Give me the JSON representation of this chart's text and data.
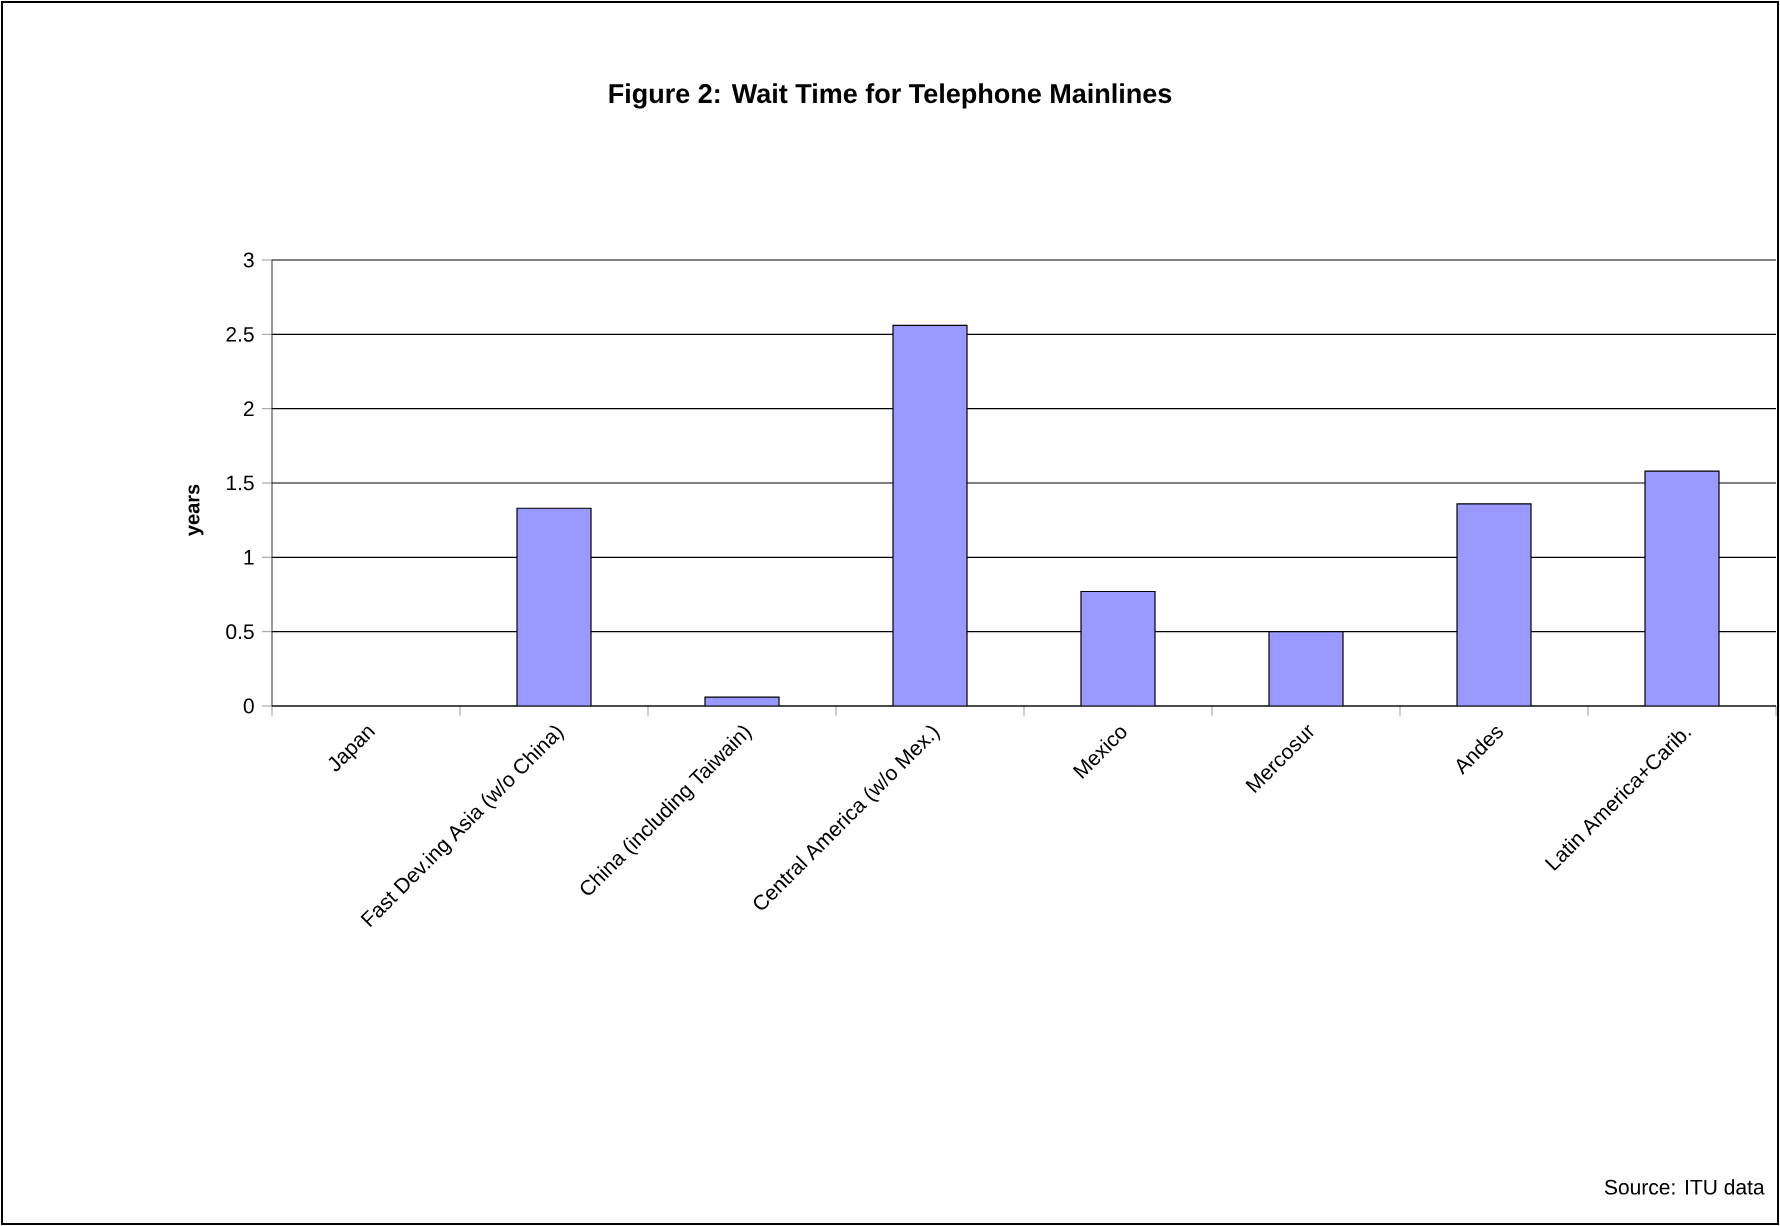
{
  "chart_data": {
    "type": "bar",
    "title": "Figure 2: Wait Time for Telephone Mainlines",
    "ylabel": "years",
    "categories": [
      "Japan",
      "Fast Dev.ing Asia (w/o China)",
      "China (including Taiwain)",
      "Central America (w/o Mex.)",
      "Mexico",
      "Mercosur",
      "Andes",
      "Latin America+Carib."
    ],
    "values": [
      null,
      1.33,
      0.06,
      2.56,
      0.77,
      0.5,
      1.36,
      1.58
    ],
    "color": "#9999ff",
    "ylim": [
      0,
      3
    ],
    "yticks": [
      0,
      0.5,
      1,
      1.5,
      2,
      2.5,
      3
    ],
    "grid": "y",
    "annotations": [
      "Source: ITU data"
    ]
  }
}
